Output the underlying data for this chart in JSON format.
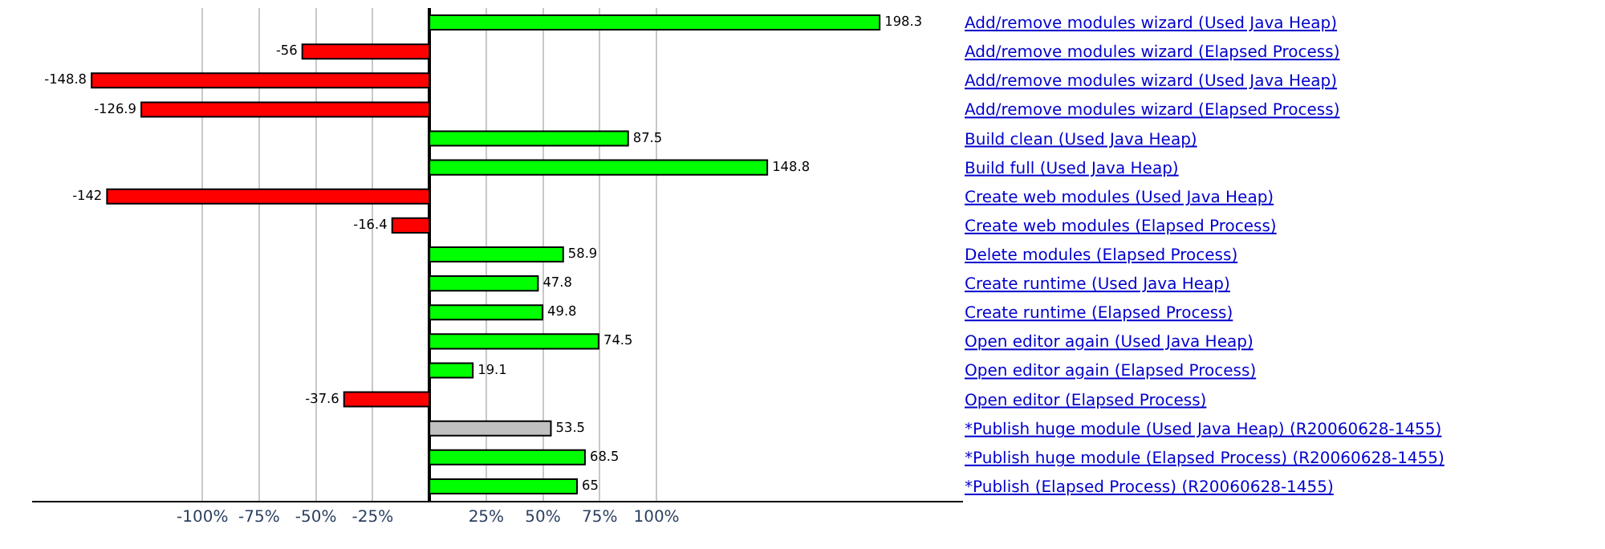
{
  "chart_data": {
    "type": "bar",
    "orientation": "horizontal",
    "categories": [
      "Add/remove modules wizard (Used Java Heap)",
      "Add/remove modules wizard (Elapsed Process)",
      "Add/remove modules wizard (Used Java Heap)",
      "Add/remove modules wizard (Elapsed Process)",
      "Build clean (Used Java Heap)",
      "Build full (Used Java Heap)",
      "Create web modules (Used Java Heap)",
      "Create web modules (Elapsed Process)",
      "Delete modules (Elapsed Process)",
      "Create runtime (Used Java Heap)",
      "Create runtime (Elapsed Process)",
      "Open editor again (Used Java Heap)",
      "Open editor again (Elapsed Process)",
      "Open editor (Elapsed Process)",
      "*Publish huge module (Used Java Heap) (R20060628-1455)",
      "*Publish huge module (Elapsed Process) (R20060628-1455)",
      "*Publish (Elapsed Process) (R20060628-1455)"
    ],
    "values": [
      198.3,
      -56,
      -148.8,
      -126.9,
      87.5,
      148.8,
      -142,
      -16.4,
      58.9,
      47.8,
      49.8,
      74.5,
      19.1,
      -37.6,
      53.5,
      68.5,
      65
    ],
    "colors": [
      "#00ff00",
      "#ff0000",
      "#ff0000",
      "#ff0000",
      "#00ff00",
      "#00ff00",
      "#ff0000",
      "#ff0000",
      "#00ff00",
      "#00ff00",
      "#00ff00",
      "#00ff00",
      "#00ff00",
      "#ff0000",
      "#c0c0c0",
      "#00ff00",
      "#00ff00"
    ],
    "data_labels": true,
    "xlim": [
      -175,
      235
    ],
    "xticks": [
      {
        "value": -100,
        "label": "-100%"
      },
      {
        "value": -75,
        "label": "-75%"
      },
      {
        "value": -50,
        "label": "-50%"
      },
      {
        "value": -25,
        "label": "-25%"
      },
      {
        "value": 25,
        "label": "25%"
      },
      {
        "value": 50,
        "label": "50%"
      },
      {
        "value": 75,
        "label": "75%"
      },
      {
        "value": 100,
        "label": "100%"
      }
    ],
    "grid": "x"
  }
}
